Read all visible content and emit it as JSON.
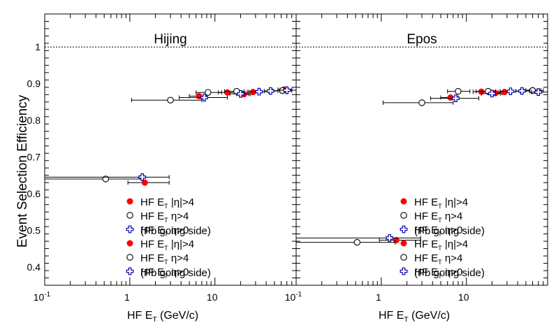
{
  "figure": {
    "ylabel": "Event Selection Efficiency",
    "reference_line": 1.0
  },
  "chart_data": [
    {
      "type": "scatter",
      "title": "Hijing",
      "xlabel": "HF E_T (GeV/c)",
      "ylabel": "Event Selection Efficiency",
      "xscale": "log",
      "xlim": [
        0.1,
        90
      ],
      "ylim": [
        0.35,
        1.09
      ],
      "x_tick_labels": [
        "10^-1",
        "1",
        "10"
      ],
      "y_tick_labels": [
        "0.4",
        "0.5",
        "0.6",
        "0.7",
        "0.8",
        "0.9",
        "1"
      ],
      "grid": false,
      "legend": [
        {
          "label": "HF E_T |η|>4",
          "marker": "filled-circle",
          "color": "#ff0000"
        },
        {
          "label": "HF E_T η>4",
          "marker": "open-circle",
          "color": "#000000"
        },
        {
          "label": "HF E_T η>0",
          "marker": "open-cross",
          "color": "#0000aa"
        },
        {
          "label": "(Pb going side)",
          "marker": "none",
          "color": "#000000"
        }
      ],
      "series": [
        {
          "marker": "filled-circle",
          "color": "#ff0000",
          "points": [
            [
              1.5,
              0.63,
              0.95,
              2.9
            ],
            [
              6.5,
              0.866,
              5.0,
              8.0
            ],
            [
              14,
              0.876,
              11,
              17
            ],
            [
              22,
              0.871,
              18,
              26
            ],
            [
              28,
              0.877,
              24,
              33
            ],
            [
              65,
              0.884,
              55,
              80
            ]
          ]
        },
        {
          "marker": "open-circle",
          "color": "#000000",
          "points": [
            [
              0.52,
              0.64,
              0.1,
              1.45
            ],
            [
              3.0,
              0.855,
              1.05,
              7.0
            ],
            [
              8.3,
              0.876,
              6.0,
              12
            ],
            [
              18,
              0.879,
              13,
              22
            ],
            [
              62,
              0.881,
              48,
              80
            ]
          ]
        },
        {
          "marker": "open-cross",
          "color": "#0000aa",
          "points": [
            [
              1.4,
              0.645,
              0.1,
              2.9
            ],
            [
              7.5,
              0.862,
              3.8,
              14
            ],
            [
              20,
              0.872,
              15,
              25
            ],
            [
              33,
              0.878,
              25,
              43
            ],
            [
              45,
              0.88,
              38,
              55
            ],
            [
              70,
              0.882,
              58,
              90
            ]
          ]
        }
      ]
    },
    {
      "type": "scatter",
      "title": "Epos",
      "xlabel": "HF E_T (GeV/c)",
      "ylabel": "",
      "xscale": "log",
      "xlim": [
        0.1,
        90
      ],
      "ylim": [
        0.35,
        1.09
      ],
      "x_tick_labels": [
        "10^-1",
        "1",
        "10"
      ],
      "y_tick_labels": [],
      "grid": false,
      "legend": [
        {
          "label": "HF E_T |η|>4",
          "marker": "filled-circle",
          "color": "#ff0000"
        },
        {
          "label": "HF E_T η>4",
          "marker": "open-circle",
          "color": "#000000"
        },
        {
          "label": "HF E_T η>0",
          "marker": "open-cross",
          "color": "#0000aa"
        },
        {
          "label": "(Pb going side)",
          "marker": "none",
          "color": "#000000"
        }
      ],
      "series": [
        {
          "marker": "filled-circle",
          "color": "#ff0000",
          "points": [
            [
              1.5,
              0.473,
              0.95,
              2.9
            ],
            [
              6.5,
              0.862,
              5.0,
              8.0
            ],
            [
              15,
              0.878,
              12,
              18
            ],
            [
              22,
              0.874,
              18,
              26
            ],
            [
              28,
              0.877,
              24,
              33
            ],
            [
              60,
              0.882,
              50,
              75
            ]
          ]
        },
        {
          "marker": "open-circle",
          "color": "#000000",
          "points": [
            [
              0.52,
              0.467,
              0.1,
              1.45
            ],
            [
              3.0,
              0.848,
              1.05,
              7.0
            ],
            [
              8.0,
              0.879,
              6.0,
              11
            ],
            [
              18,
              0.879,
              13,
              22
            ],
            [
              60,
              0.881,
              47,
              80
            ]
          ]
        },
        {
          "marker": "open-cross",
          "color": "#0000aa",
          "points": [
            [
              1.25,
              0.479,
              0.1,
              2.9
            ],
            [
              7.5,
              0.86,
              3.8,
              14
            ],
            [
              20,
              0.873,
              15,
              25
            ],
            [
              33,
              0.879,
              25,
              43
            ],
            [
              45,
              0.88,
              38,
              55
            ],
            [
              70,
              0.877,
              58,
              90
            ]
          ]
        }
      ]
    }
  ]
}
